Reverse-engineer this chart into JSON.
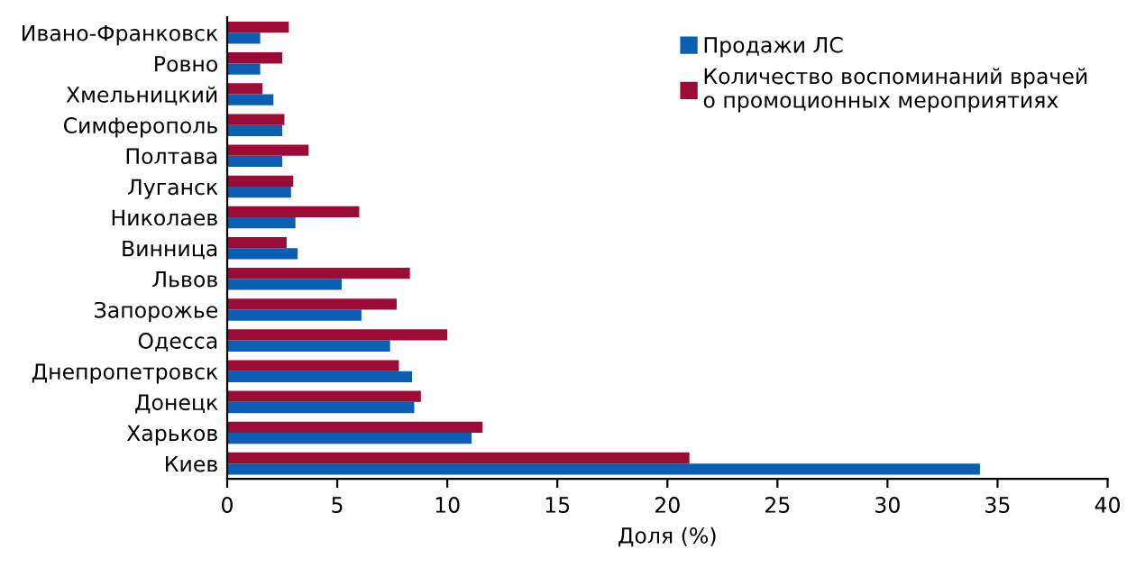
{
  "chart_data": {
    "type": "bar",
    "orientation": "horizontal",
    "xlabel": "Доля (%)",
    "categories": [
      "Ивано-Франковск",
      "Ровно",
      "Хмельницкий",
      "Симферополь",
      "Полтава",
      "Луганск",
      "Николаев",
      "Винница",
      "Львов",
      "Запорожье",
      "Одесса",
      "Днепропетровск",
      "Донецк",
      "Харьков",
      "Киев"
    ],
    "series": [
      {
        "name": "Продажи ЛС",
        "color": "#0a5fb4",
        "values": [
          1.5,
          1.5,
          2.1,
          2.5,
          2.5,
          2.9,
          3.1,
          3.2,
          5.2,
          6.1,
          7.4,
          8.4,
          8.5,
          11.1,
          34.2
        ]
      },
      {
        "name": "Количество воспоминаний врачей\nо промоционных мероприятиях",
        "color": "#9c0a36",
        "values": [
          2.8,
          2.5,
          1.6,
          2.6,
          3.7,
          3.0,
          6.0,
          2.7,
          8.3,
          7.7,
          10.0,
          7.8,
          8.8,
          11.6,
          21.0
        ]
      }
    ],
    "xlim": [
      0,
      40
    ],
    "xticks": [
      0,
      5,
      10,
      15,
      20,
      25,
      30,
      35,
      40
    ],
    "grid": false,
    "legend": "top right"
  }
}
